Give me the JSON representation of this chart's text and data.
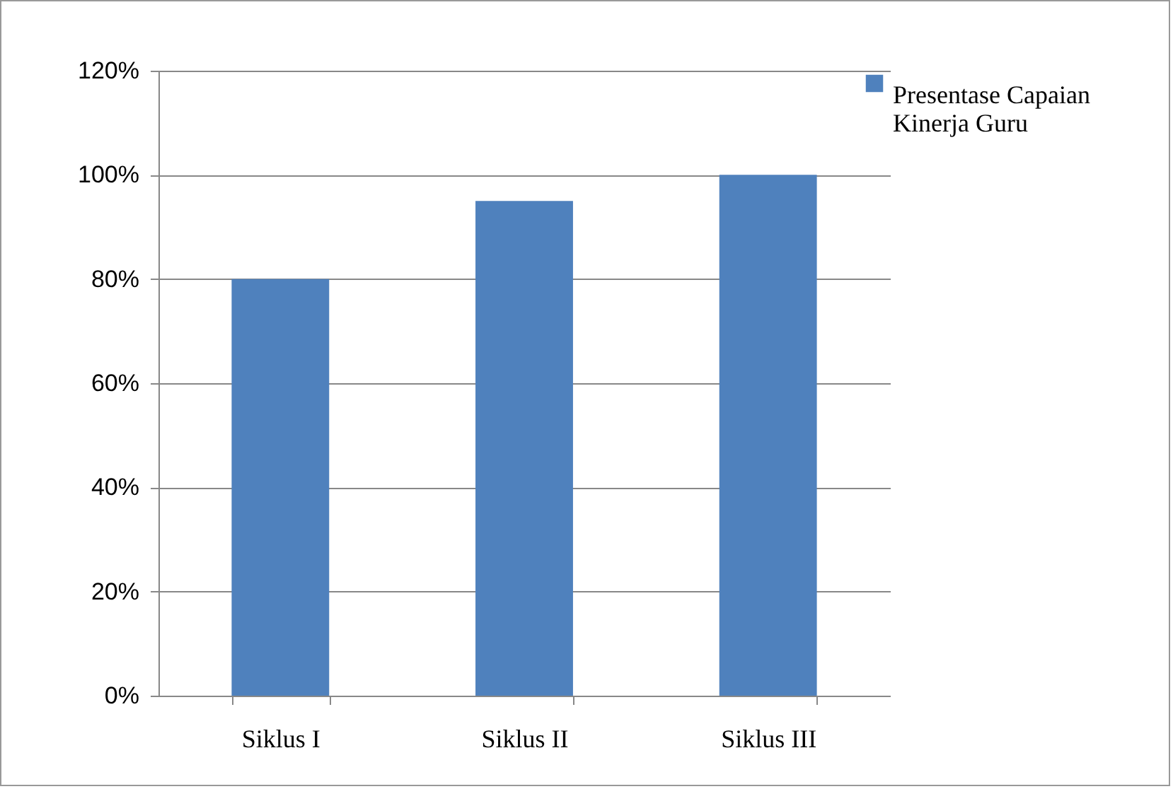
{
  "chart_data": {
    "type": "bar",
    "categories": [
      "Siklus I",
      "Siklus II",
      "Siklus III"
    ],
    "series": [
      {
        "name": "Presentase Capaian Kinerja Guru",
        "color": "#4f81bd",
        "values": [
          80,
          95,
          100
        ]
      }
    ],
    "ylim": [
      0,
      120
    ],
    "yticks": [
      {
        "value": 0,
        "label": "0%"
      },
      {
        "value": 20,
        "label": "20%"
      },
      {
        "value": 40,
        "label": "40%"
      },
      {
        "value": 60,
        "label": "60%"
      },
      {
        "value": 80,
        "label": "80%"
      },
      {
        "value": 100,
        "label": "100%"
      },
      {
        "value": 120,
        "label": "120%"
      }
    ],
    "grid": "y",
    "legend": "right"
  }
}
